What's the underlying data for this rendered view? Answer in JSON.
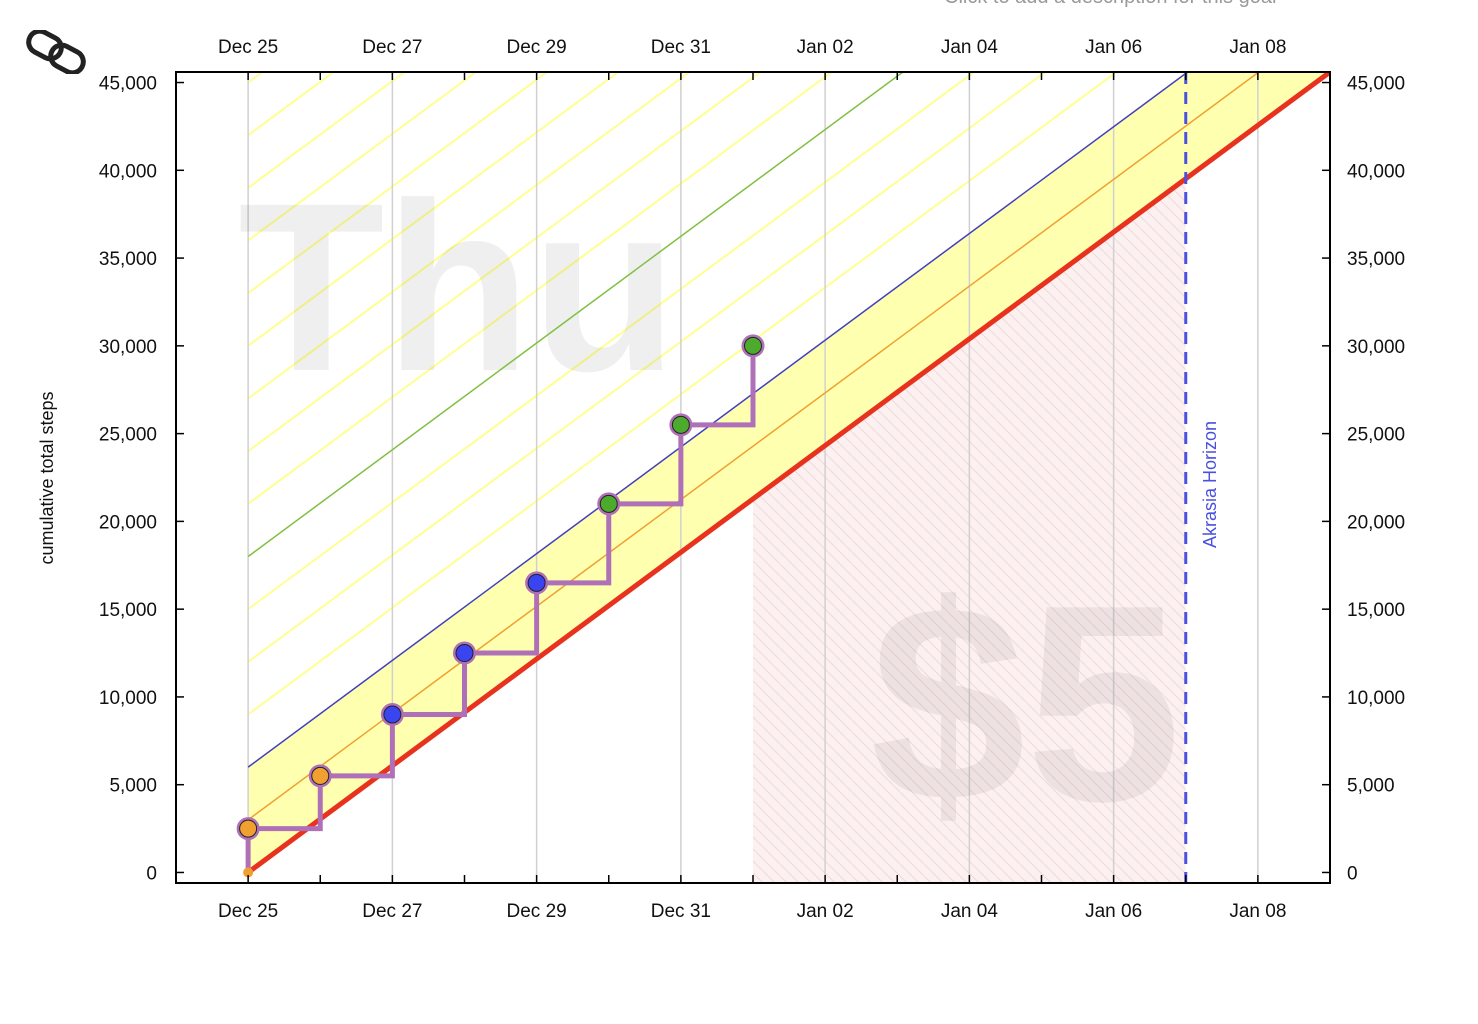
{
  "header": {
    "caption": "Click to add a description for this goal",
    "link_icon": "link-icon"
  },
  "chart_data": {
    "type": "line",
    "title": "",
    "xlabel": "",
    "ylabel": "cumulative total steps",
    "x_ticks": [
      "Dec 25",
      "Dec 27",
      "Dec 29",
      "Dec 31",
      "Jan 02",
      "Jan 04",
      "Jan 06",
      "Jan 08"
    ],
    "x_range": [
      "Dec 24",
      "Jan 09"
    ],
    "y_ticks": [
      "0",
      "5,000",
      "10,000",
      "15,000",
      "20,000",
      "25,000",
      "30,000",
      "35,000",
      "40,000",
      "45,000"
    ],
    "ylim": [
      -600,
      45600
    ],
    "grid": true,
    "watermarks": {
      "day": "Thu",
      "pledge": "$5"
    },
    "akrasia_horizon": {
      "label": "Akrasia Horizon",
      "date": "Jan 07"
    },
    "bright_red_line": {
      "start": [
        "Dec 25",
        0
      ],
      "end": [
        "Jan 09",
        45600
      ],
      "color": "#e8321e"
    },
    "series": [
      {
        "name": "datapoints",
        "color": "#b070b8",
        "points": [
          {
            "date": "Dec 25",
            "value": 0,
            "color": "#f0a030"
          },
          {
            "date": "Dec 25",
            "value": 2500,
            "color": "#f0a030"
          },
          {
            "date": "Dec 26",
            "value": 5500,
            "color": "#f0a030"
          },
          {
            "date": "Dec 27",
            "value": 9000,
            "color": "#3a44f0"
          },
          {
            "date": "Dec 28",
            "value": 12500,
            "color": "#3a44f0"
          },
          {
            "date": "Dec 29",
            "value": 16500,
            "color": "#3a44f0"
          },
          {
            "date": "Dec 30",
            "value": 21000,
            "color": "#4caa2c"
          },
          {
            "date": "Dec 31",
            "value": 25500,
            "color": "#4caa2c"
          },
          {
            "date": "Jan 01",
            "value": 30000,
            "color": "#4caa2c"
          }
        ]
      }
    ],
    "colors": {
      "safe_band": "#ffffb0",
      "hatch_lines": "#ffff90",
      "blue_line": "#4040c0",
      "orange_line": "#f0a030",
      "green_line": "#80c040",
      "grid": "#d0d0d0",
      "horizon": "#4a50e0",
      "pink_region": "#fdf0f0"
    }
  }
}
